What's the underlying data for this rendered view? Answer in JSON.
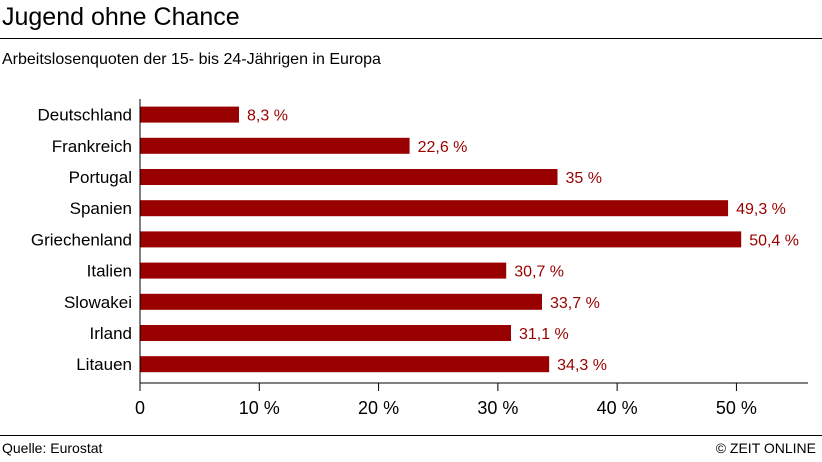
{
  "header": {
    "title": "Jugend ohne Chance",
    "subtitle": "Arbeitslosenquoten der 15- bis 24-Jährigen in Europa"
  },
  "footer": {
    "source": "Quelle: Eurostat",
    "copyright": "© ZEIT ONLINE"
  },
  "colors": {
    "bar": "#990000",
    "label": "#990000",
    "axis": "#000000"
  },
  "chart_data": {
    "type": "bar",
    "orientation": "horizontal",
    "title": "Jugend ohne Chance",
    "subtitle": "Arbeitslosenquoten der 15- bis 24-Jährigen in Europa",
    "categories": [
      "Deutschland",
      "Frankreich",
      "Portugal",
      "Spanien",
      "Griechenland",
      "Italien",
      "Slowakei",
      "Irland",
      "Litauen"
    ],
    "values": [
      8.3,
      22.6,
      35,
      49.3,
      50.4,
      30.7,
      33.7,
      31.1,
      34.3
    ],
    "value_labels": [
      "8,3 %",
      "22,6 %",
      "35 %",
      "49,3 %",
      "50,4 %",
      "30,7 %",
      "33,7 %",
      "31,1 %",
      "34,3 %"
    ],
    "xlim": [
      0,
      56
    ],
    "xticks": [
      0,
      10,
      20,
      30,
      40,
      50
    ],
    "xtick_labels": [
      "0",
      "10 %",
      "20 %",
      "30 %",
      "40 %",
      "50 %"
    ],
    "xlabel": "",
    "ylabel": "",
    "grid": false,
    "legend": "none"
  }
}
